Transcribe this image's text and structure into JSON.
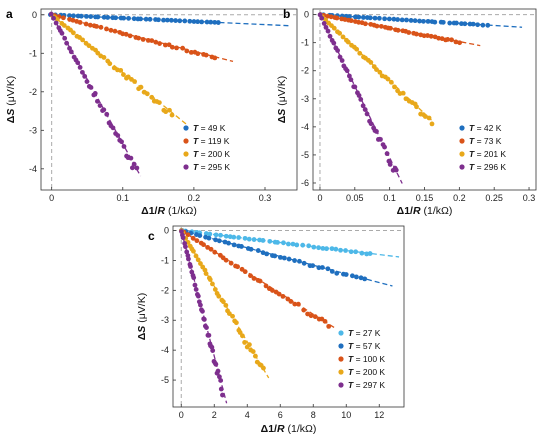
{
  "figure": {
    "panels": [
      "a",
      "b",
      "c"
    ]
  },
  "chart_data": [
    {
      "panel": "a",
      "type": "scatter",
      "xlabel_main": "Δ1/",
      "xlabel_italic": "R",
      "xlabel_unit": " (1/kΩ)",
      "ylabel_main": "Δ",
      "ylabel_italic": "S",
      "ylabel_unit": " (μV/K)",
      "xlim": [
        -0.015,
        0.345
      ],
      "ylim": [
        -4.55,
        0.15
      ],
      "xticks": [
        0,
        0.1,
        0.2,
        0.3
      ],
      "xtick_labels": [
        "0",
        "0.1",
        "0.2",
        "0.3"
      ],
      "yticks": [
        0,
        -1,
        -2,
        -3,
        -4
      ],
      "ytick_labels": [
        "0",
        "-1",
        "-2",
        "-3",
        "-4"
      ],
      "legend_position": "lower-right",
      "grid": false,
      "series": [
        {
          "name": "T = 49 K",
          "label_prefix": "T",
          "label_value": " = 49 K",
          "color": "#1f6fbf",
          "x_start": 0.0,
          "x_end": 0.235,
          "slope": -0.85,
          "fit_x_end": 0.335
        },
        {
          "name": "T = 119 K",
          "label_prefix": "T",
          "label_value": " = 119 K",
          "color": "#d95319",
          "x_start": 0.0,
          "x_end": 0.23,
          "slope": -4.75,
          "fit_x_end": 0.255
        },
        {
          "name": "T = 200 K",
          "label_prefix": "T",
          "label_value": " = 200 K",
          "color": "#e8a81a",
          "x_start": 0.0,
          "x_end": 0.17,
          "slope": -15.0,
          "fit_x_end": 0.19
        },
        {
          "name": "T = 295 K",
          "label_prefix": "T",
          "label_value": " = 295 K",
          "color": "#7e2f8e",
          "x_start": 0.0,
          "x_end": 0.12,
          "slope": -33.5,
          "fit_x_end": 0.125
        }
      ]
    },
    {
      "panel": "b",
      "type": "scatter",
      "xlabel_main": "Δ1/",
      "xlabel_italic": "R",
      "xlabel_unit": " (1/kΩ)",
      "ylabel_main": "Δ",
      "ylabel_italic": "S",
      "ylabel_unit": " (μV/K)",
      "xlim": [
        -0.01,
        0.31
      ],
      "ylim": [
        -6.25,
        0.2
      ],
      "xticks": [
        0,
        0.05,
        0.1,
        0.15,
        0.2,
        0.25,
        0.3
      ],
      "xtick_labels": [
        "0",
        "0.05",
        "0.1",
        "0.15",
        "0.2",
        "0.25",
        "0.3"
      ],
      "yticks": [
        0,
        -1,
        -2,
        -3,
        -4,
        -5,
        -6
      ],
      "ytick_labels": [
        "0",
        "-1",
        "-2",
        "-3",
        "-4",
        "-5",
        "-6"
      ],
      "legend_position": "lower-right",
      "grid": false,
      "series": [
        {
          "name": "T = 42 K",
          "label_prefix": "T",
          "label_value": " = 42 K",
          "color": "#1f6fbf",
          "x_start": 0.0,
          "x_end": 0.24,
          "slope": -1.55,
          "fit_x_end": 0.29
        },
        {
          "name": "T = 73 K",
          "label_prefix": "T",
          "label_value": " = 73 K",
          "color": "#d95319",
          "x_start": 0.0,
          "x_end": 0.2,
          "slope": -4.8,
          "fit_x_end": 0.23
        },
        {
          "name": "T = 201 K",
          "label_prefix": "T",
          "label_value": " = 201 K",
          "color": "#e8a81a",
          "x_start": 0.0,
          "x_end": 0.16,
          "slope": -23.5,
          "fit_x_end": 0.16
        },
        {
          "name": "T = 296 K",
          "label_prefix": "T",
          "label_value": " = 296 K",
          "color": "#7e2f8e",
          "x_start": 0.0,
          "x_end": 0.11,
          "slope": -51.0,
          "fit_x_end": 0.118
        }
      ]
    },
    {
      "panel": "c",
      "type": "scatter",
      "xlabel_main": "Δ1/",
      "xlabel_italic": "R",
      "xlabel_unit": " (1/kΩ)",
      "ylabel_main": "Δ",
      "ylabel_italic": "S",
      "ylabel_unit": " (μV/K)",
      "xlim": [
        -0.5,
        13.5
      ],
      "ylim": [
        -5.9,
        0.15
      ],
      "xticks": [
        0,
        2,
        4,
        6,
        8,
        10,
        12
      ],
      "xtick_labels": [
        "0",
        "2",
        "4",
        "6",
        "8",
        "10",
        "12"
      ],
      "yticks": [
        0,
        -1,
        -2,
        -3,
        -4,
        -5
      ],
      "ytick_labels": [
        "0",
        "-1",
        "-2",
        "-3",
        "-4",
        "-5"
      ],
      "legend_position": "lower-right",
      "grid": false,
      "series": [
        {
          "name": "T = 27 K",
          "label_prefix": "T",
          "label_value": " = 27 K",
          "color": "#4db8e8",
          "x_start": 0.0,
          "x_end": 11.5,
          "slope": -0.067,
          "fit_x_end": 13.2
        },
        {
          "name": "T = 57 K",
          "label_prefix": "T",
          "label_value": " = 57 K",
          "color": "#1f6fbf",
          "x_start": 0.0,
          "x_end": 11.2,
          "slope": -0.145,
          "fit_x_end": 12.8
        },
        {
          "name": "T = 100 K",
          "label_prefix": "T",
          "label_value": " = 100 K",
          "color": "#d95319",
          "x_start": 0.0,
          "x_end": 9.0,
          "slope": -0.35,
          "fit_x_end": 9.3
        },
        {
          "name": "T = 200 K",
          "label_prefix": "T",
          "label_value": " = 200 K",
          "color": "#e8a81a",
          "x_start": 0.0,
          "x_end": 5.0,
          "slope": -0.93,
          "fit_x_end": 5.3
        },
        {
          "name": "T = 297 K",
          "label_prefix": "T",
          "label_value": " = 297 K",
          "color": "#7e2f8e",
          "x_start": 0.0,
          "x_end": 2.5,
          "slope": -2.1,
          "fit_x_end": 2.75
        }
      ]
    }
  ]
}
